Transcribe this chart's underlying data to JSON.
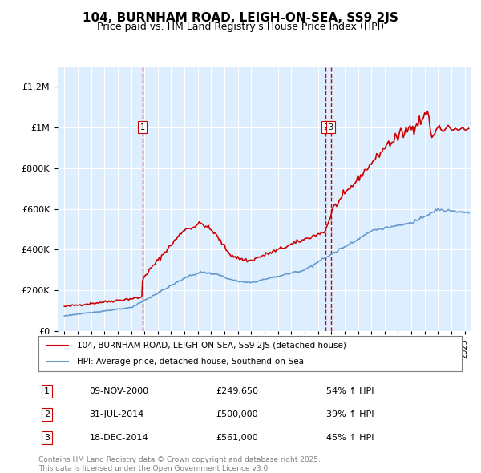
{
  "title": "104, BURNHAM ROAD, LEIGH-ON-SEA, SS9 2JS",
  "subtitle": "Price paid vs. HM Land Registry's House Price Index (HPI)",
  "legend_label_red": "104, BURNHAM ROAD, LEIGH-ON-SEA, SS9 2JS (detached house)",
  "legend_label_blue": "HPI: Average price, detached house, Southend-on-Sea",
  "footer": "Contains HM Land Registry data © Crown copyright and database right 2025.\nThis data is licensed under the Open Government Licence v3.0.",
  "transactions": [
    {
      "num": "1",
      "date": "09-NOV-2000",
      "price": "£249,650",
      "change": "54% ↑ HPI",
      "year": 2000.86
    },
    {
      "num": "2",
      "date": "31-JUL-2014",
      "price": "£500,000",
      "change": "39% ↑ HPI",
      "year": 2014.58
    },
    {
      "num": "3",
      "date": "18-DEC-2014",
      "price": "£561,000",
      "change": "45% ↑ HPI",
      "year": 2014.96
    }
  ],
  "vline_years": [
    2000.86,
    2014.96
  ],
  "red_color": "#cc0000",
  "blue_color": "#6699cc",
  "background_color": "#ddeeff",
  "ylim": [
    0,
    1300000
  ],
  "xlim_start": 1994.5,
  "xlim_end": 2025.5
}
